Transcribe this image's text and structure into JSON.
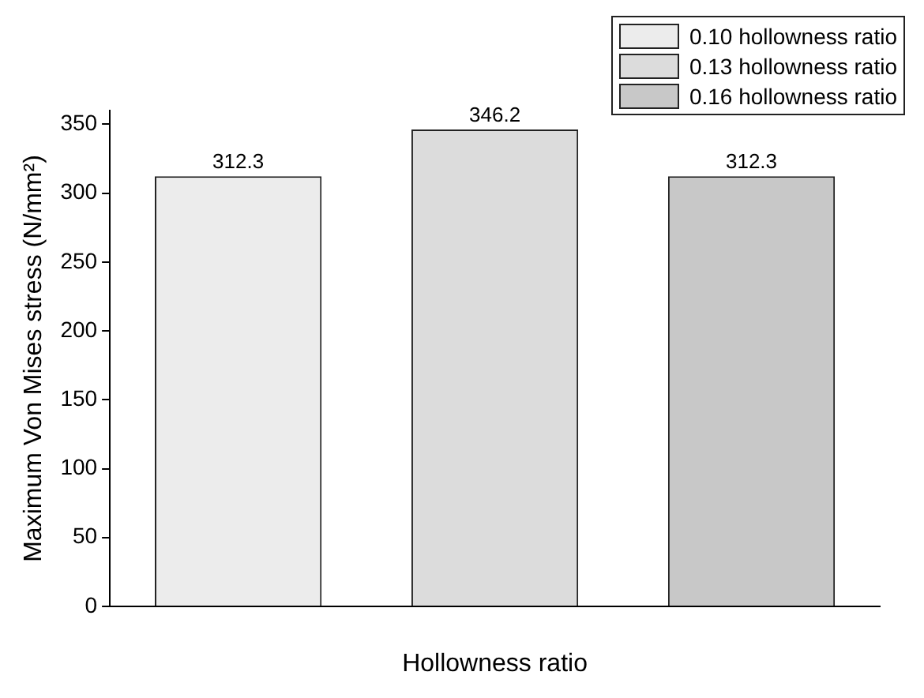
{
  "chart_data": {
    "type": "bar",
    "xlabel": "Hollowness ratio",
    "ylabel": "Maximum Von Mises stress (N/mm²)",
    "categories": [
      null,
      null,
      null
    ],
    "series": [
      {
        "name": "0.10 hollowness ratio",
        "color": "#ececec",
        "values": [
          312.3,
          null,
          null
        ]
      },
      {
        "name": "0.13 hollowness ratio",
        "color": "#dcdcdc",
        "values": [
          null,
          346.2,
          null
        ]
      },
      {
        "name": "0.16 hollowness ratio",
        "color": "#c8c8c8",
        "values": [
          null,
          null,
          312.3
        ]
      }
    ],
    "ylim": [
      0,
      360
    ],
    "yticks": [
      0,
      50,
      100,
      150,
      200,
      250,
      300,
      350
    ],
    "data_labels": true,
    "legend": "top right",
    "grid": false
  }
}
